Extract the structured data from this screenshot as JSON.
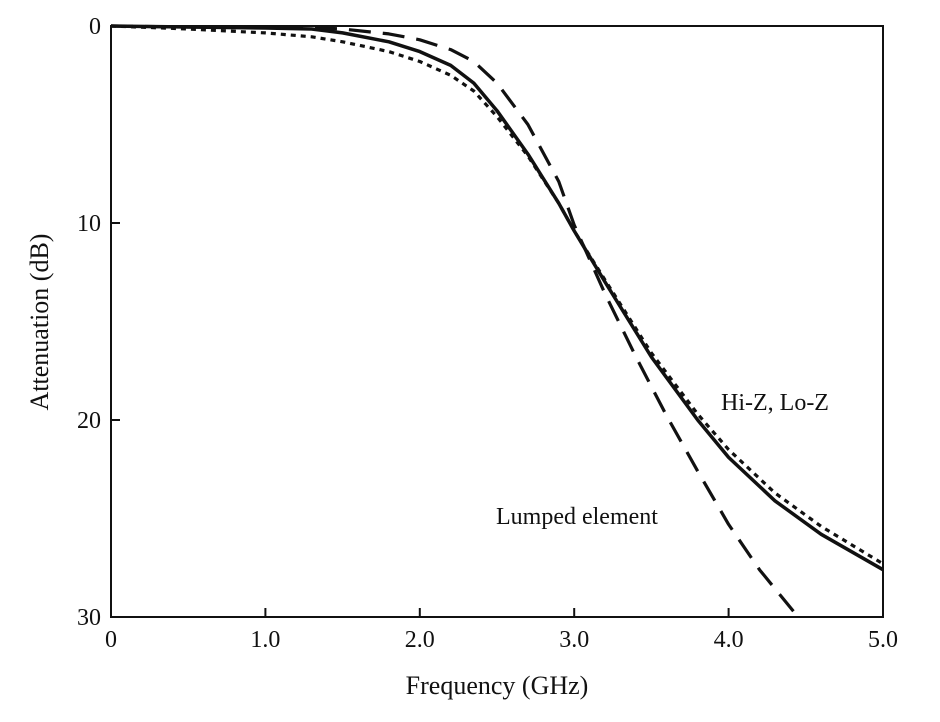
{
  "chart_data": {
    "type": "line",
    "xlabel": "Frequency (GHz)",
    "ylabel": "Attenuation (dB)",
    "xlim": [
      0,
      5.0
    ],
    "ylim": [
      0,
      30
    ],
    "y_axis_inverted": true,
    "grid": false,
    "x_ticks": [
      "0",
      "1.0",
      "2.0",
      "3.0",
      "4.0",
      "5.0"
    ],
    "x_tick_values": [
      0,
      1,
      2,
      3,
      4,
      5
    ],
    "y_ticks": [
      "0",
      "10",
      "20",
      "30"
    ],
    "y_tick_values": [
      0,
      10,
      20,
      30
    ],
    "annotations": [
      {
        "text": "Hi-Z, Lo-Z"
      },
      {
        "text": "Lumped element"
      }
    ],
    "series": [
      {
        "style": "solid",
        "x": [
          0,
          0.5,
          1.0,
          1.3,
          1.5,
          1.8,
          2.0,
          2.2,
          2.35,
          2.5,
          2.7,
          2.9,
          3.0,
          3.2,
          3.5,
          3.8,
          4.0,
          4.3,
          4.6,
          5.0
        ],
        "y": [
          0,
          0.05,
          0.1,
          0.15,
          0.35,
          0.8,
          1.3,
          2.0,
          2.9,
          4.3,
          6.5,
          9.0,
          10.4,
          13.0,
          16.8,
          20.0,
          21.9,
          24.1,
          25.8,
          27.6
        ]
      },
      {
        "style": "dotted",
        "x": [
          0,
          0.5,
          1.0,
          1.3,
          1.5,
          1.8,
          2.0,
          2.2,
          2.35,
          2.5,
          2.7,
          2.9,
          3.0,
          3.2,
          3.5,
          3.8,
          4.0,
          4.3,
          4.6,
          5.0
        ],
        "y": [
          0,
          0.15,
          0.35,
          0.55,
          0.8,
          1.3,
          1.8,
          2.5,
          3.3,
          4.6,
          6.6,
          9.0,
          10.4,
          12.9,
          16.6,
          19.7,
          21.5,
          23.7,
          25.4,
          27.3
        ]
      },
      {
        "style": "dashed",
        "x": [
          0,
          0.5,
          1.0,
          1.3,
          1.5,
          1.8,
          2.0,
          2.2,
          2.35,
          2.5,
          2.7,
          2.9,
          3.0,
          3.2,
          3.4,
          3.6,
          3.8,
          4.0,
          4.2,
          4.45
        ],
        "y": [
          0,
          0.05,
          0.05,
          0.08,
          0.15,
          0.4,
          0.7,
          1.2,
          1.8,
          2.9,
          5.0,
          7.9,
          10.1,
          13.6,
          16.8,
          19.8,
          22.6,
          25.3,
          27.6,
          30.0
        ]
      }
    ]
  }
}
